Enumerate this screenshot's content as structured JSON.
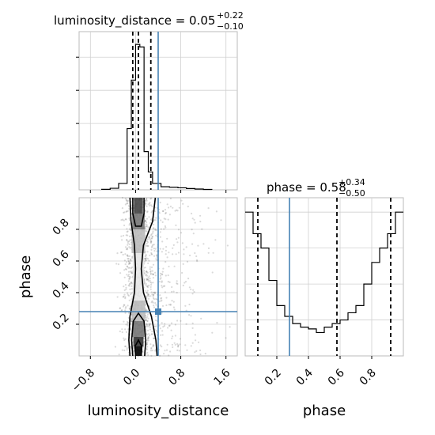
{
  "chart_data": [
    {
      "type": "histogram",
      "panel": "luminosity_distance-marginal",
      "title": {
        "prefix": "luminosity_distance = 0.05",
        "upper": "+0.22",
        "lower": "−0.10"
      },
      "bin_edges": [
        -0.6,
        -0.45,
        -0.3,
        -0.15,
        -0.075,
        0.0,
        0.075,
        0.15,
        0.225,
        0.3,
        0.45,
        0.6,
        0.75,
        0.9,
        1.05,
        1.2,
        1.35
      ],
      "counts": [
        0.2,
        0.6,
        2.5,
        24,
        43,
        57,
        56,
        15,
        7,
        2.5,
        1.2,
        1.0,
        0.8,
        0.5,
        0.3,
        0.15
      ],
      "quantile_lines": [
        -0.05,
        0.05,
        0.27
      ],
      "truth": 0.4,
      "xlim": [
        -1.0,
        1.8
      ],
      "ylim": [
        0,
        62
      ],
      "grid": true,
      "colors": {
        "hist": "#000000",
        "truth": "#4682b4",
        "quantile": "#000000"
      }
    },
    {
      "type": "scatter",
      "panel": "luminosity_distance-vs-phase-2d",
      "x_label": "luminosity_distance",
      "y_label": "phase",
      "x_ticks": [
        "−0.8",
        "0.0",
        "0.8",
        "1.6"
      ],
      "x_tick_values": [
        -0.8,
        0.0,
        0.8,
        1.6
      ],
      "y_ticks": [
        "0.2",
        "0.4",
        "0.6",
        "0.8"
      ],
      "y_tick_values": [
        0.2,
        0.4,
        0.6,
        0.8
      ],
      "xlim": [
        -1.0,
        1.8
      ],
      "ylim": [
        0.0,
        1.0
      ],
      "truth": {
        "x": 0.4,
        "y": 0.28
      },
      "grid": true,
      "colors": {
        "points": "#555555",
        "contour": "#000000",
        "truth": "#4682b4"
      }
    },
    {
      "type": "histogram",
      "panel": "phase-marginal",
      "title": {
        "prefix": "phase = 0.58",
        "upper": "+0.34",
        "lower": "−0.50"
      },
      "bin_edges": [
        0.0,
        0.05,
        0.1,
        0.15,
        0.2,
        0.25,
        0.3,
        0.35,
        0.4,
        0.45,
        0.5,
        0.55,
        0.6,
        0.65,
        0.7,
        0.75,
        0.8,
        0.85,
        0.9,
        0.95,
        1.0
      ],
      "counts": [
        80,
        68,
        60,
        42,
        28,
        22,
        18,
        16,
        15,
        13,
        16,
        18,
        20,
        24,
        28,
        40,
        52,
        60,
        68,
        80
      ],
      "quantile_lines": [
        0.08,
        0.58,
        0.92
      ],
      "truth": 0.28,
      "x_label": "phase",
      "x_ticks": [
        "0.2",
        "0.4",
        "0.6",
        "0.8"
      ],
      "x_tick_values": [
        0.2,
        0.4,
        0.6,
        0.8
      ],
      "xlim": [
        0.0,
        1.0
      ],
      "ylim": [
        0,
        88
      ],
      "grid": true,
      "colors": {
        "hist": "#000000",
        "truth": "#4682b4",
        "quantile": "#000000"
      }
    }
  ]
}
